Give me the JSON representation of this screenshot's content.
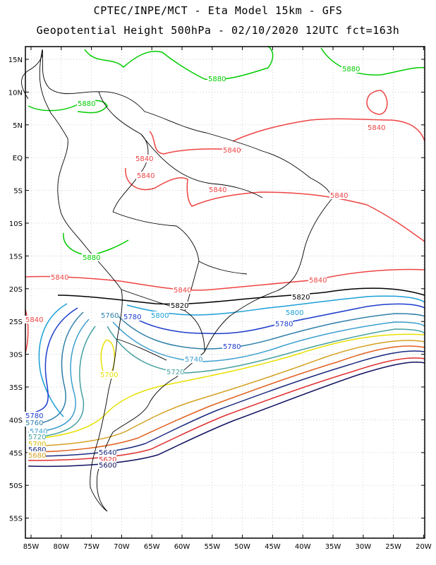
{
  "header": {
    "title_line1": "CPTEC/INPE/MCT -  Eta Model 15km - GFS",
    "title_line2": "Geopotential Height 500hPa - 02/10/2020 12UTC fct=163h"
  },
  "axes": {
    "lat_labels": [
      "15N",
      "10N",
      "5N",
      "EQ",
      "5S",
      "10S",
      "15S",
      "20S",
      "25S",
      "30S",
      "35S",
      "40S",
      "45S",
      "50S",
      "55S"
    ],
    "lon_labels": [
      "85W",
      "80W",
      "75W",
      "70W",
      "65W",
      "60W",
      "55W",
      "50W",
      "45W",
      "40W",
      "35W",
      "30W",
      "25W",
      "20W"
    ]
  },
  "contour_levels": [
    {
      "value": "5880",
      "color": "#00cc00"
    },
    {
      "value": "5840",
      "color": "#ee4444"
    },
    {
      "value": "5820",
      "color": "#000000"
    },
    {
      "value": "5800",
      "color": "#1a9fd6"
    },
    {
      "value": "5780",
      "color": "#1c3ccc"
    },
    {
      "value": "5760",
      "color": "#2f7fa8"
    },
    {
      "value": "5740",
      "color": "#3d9fcf"
    },
    {
      "value": "5720",
      "color": "#46a0a0"
    },
    {
      "value": "5700",
      "color": "#e8e000"
    },
    {
      "value": "5680",
      "color": "#d4a020"
    },
    {
      "value": "5660",
      "color": "#e06020"
    },
    {
      "value": "5640",
      "color": "#1a2a80"
    },
    {
      "value": "5620",
      "color": "#e03030"
    },
    {
      "value": "5600",
      "color": "#101060"
    }
  ],
  "contour_labels": [
    {
      "text": "5880",
      "color": "#00cc00"
    },
    {
      "text": "5880",
      "color": "#00cc00"
    },
    {
      "text": "5880",
      "color": "#00cc00"
    },
    {
      "text": "5880",
      "color": "#00cc00"
    },
    {
      "text": "5840",
      "color": "#ee4444"
    },
    {
      "text": "5840",
      "color": "#ee4444"
    },
    {
      "text": "5840",
      "color": "#ee4444"
    },
    {
      "text": "5840",
      "color": "#ee4444"
    },
    {
      "text": "5840",
      "color": "#ee4444"
    },
    {
      "text": "5840",
      "color": "#ee4444"
    },
    {
      "text": "5840",
      "color": "#ee4444"
    },
    {
      "text": "5840",
      "color": "#ee4444"
    },
    {
      "text": "5840",
      "color": "#ee4444"
    },
    {
      "text": "5840",
      "color": "#ee4444"
    },
    {
      "text": "5820",
      "color": "#000000"
    },
    {
      "text": "5820",
      "color": "#000000"
    },
    {
      "text": "5800",
      "color": "#1a9fd6"
    },
    {
      "text": "5800",
      "color": "#1a9fd6"
    },
    {
      "text": "5780",
      "color": "#1c3ccc"
    },
    {
      "text": "5780",
      "color": "#1c3ccc"
    },
    {
      "text": "5780",
      "color": "#1c3ccc"
    },
    {
      "text": "5780",
      "color": "#1c3ccc"
    },
    {
      "text": "5760",
      "color": "#2f7fa8"
    },
    {
      "text": "5760",
      "color": "#2f7fa8"
    },
    {
      "text": "5740",
      "color": "#3d9fcf"
    },
    {
      "text": "5740",
      "color": "#3d9fcf"
    },
    {
      "text": "5720",
      "color": "#46a0a0"
    },
    {
      "text": "5720",
      "color": "#46a0a0"
    },
    {
      "text": "5700",
      "color": "#e8e000"
    },
    {
      "text": "5700",
      "color": "#d4b800"
    },
    {
      "text": "5680",
      "color": "#1a2a80"
    },
    {
      "text": "5680",
      "color": "#d4a020"
    },
    {
      "text": "5640",
      "color": "#1a2a80"
    },
    {
      "text": "5620",
      "color": "#e03030"
    },
    {
      "text": "5600",
      "color": "#101060"
    }
  ]
}
